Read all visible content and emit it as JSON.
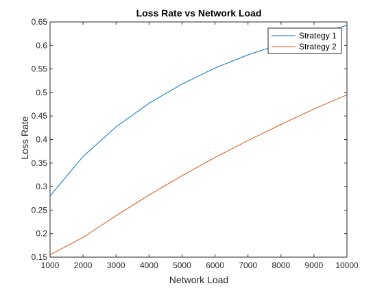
{
  "chart_data": {
    "type": "line",
    "title": "Loss Rate vs Network Load",
    "xlabel": "Network Load",
    "ylabel": "Loss Rate",
    "xlim": [
      1000,
      10000
    ],
    "ylim": [
      0.15,
      0.65
    ],
    "xticks": [
      1000,
      2000,
      3000,
      4000,
      5000,
      6000,
      7000,
      8000,
      9000,
      10000
    ],
    "yticks": [
      0.15,
      0.2,
      0.25,
      0.3,
      0.35,
      0.4,
      0.45,
      0.5,
      0.55,
      0.6,
      0.65
    ],
    "xtick_labels": [
      "1000",
      "2000",
      "3000",
      "4000",
      "5000",
      "6000",
      "7000",
      "8000",
      "9000",
      "10000"
    ],
    "ytick_labels": [
      "0.15",
      "0.2",
      "0.25",
      "0.3",
      "0.35",
      "0.4",
      "0.45",
      "0.5",
      "0.55",
      "0.6",
      "0.65"
    ],
    "grid": false,
    "legend_position": "top-right",
    "x": [
      1000,
      2000,
      3000,
      4000,
      5000,
      6000,
      7000,
      8000,
      9000,
      10000
    ],
    "series": [
      {
        "name": "Strategy 1",
        "color": "#0072bd",
        "values": [
          0.28,
          0.364,
          0.427,
          0.477,
          0.518,
          0.552,
          0.58,
          0.603,
          0.623,
          0.643
        ]
      },
      {
        "name": "Strategy 2",
        "color": "#d95319",
        "values": [
          0.155,
          0.192,
          0.238,
          0.282,
          0.323,
          0.362,
          0.398,
          0.432,
          0.465,
          0.495
        ]
      }
    ]
  }
}
